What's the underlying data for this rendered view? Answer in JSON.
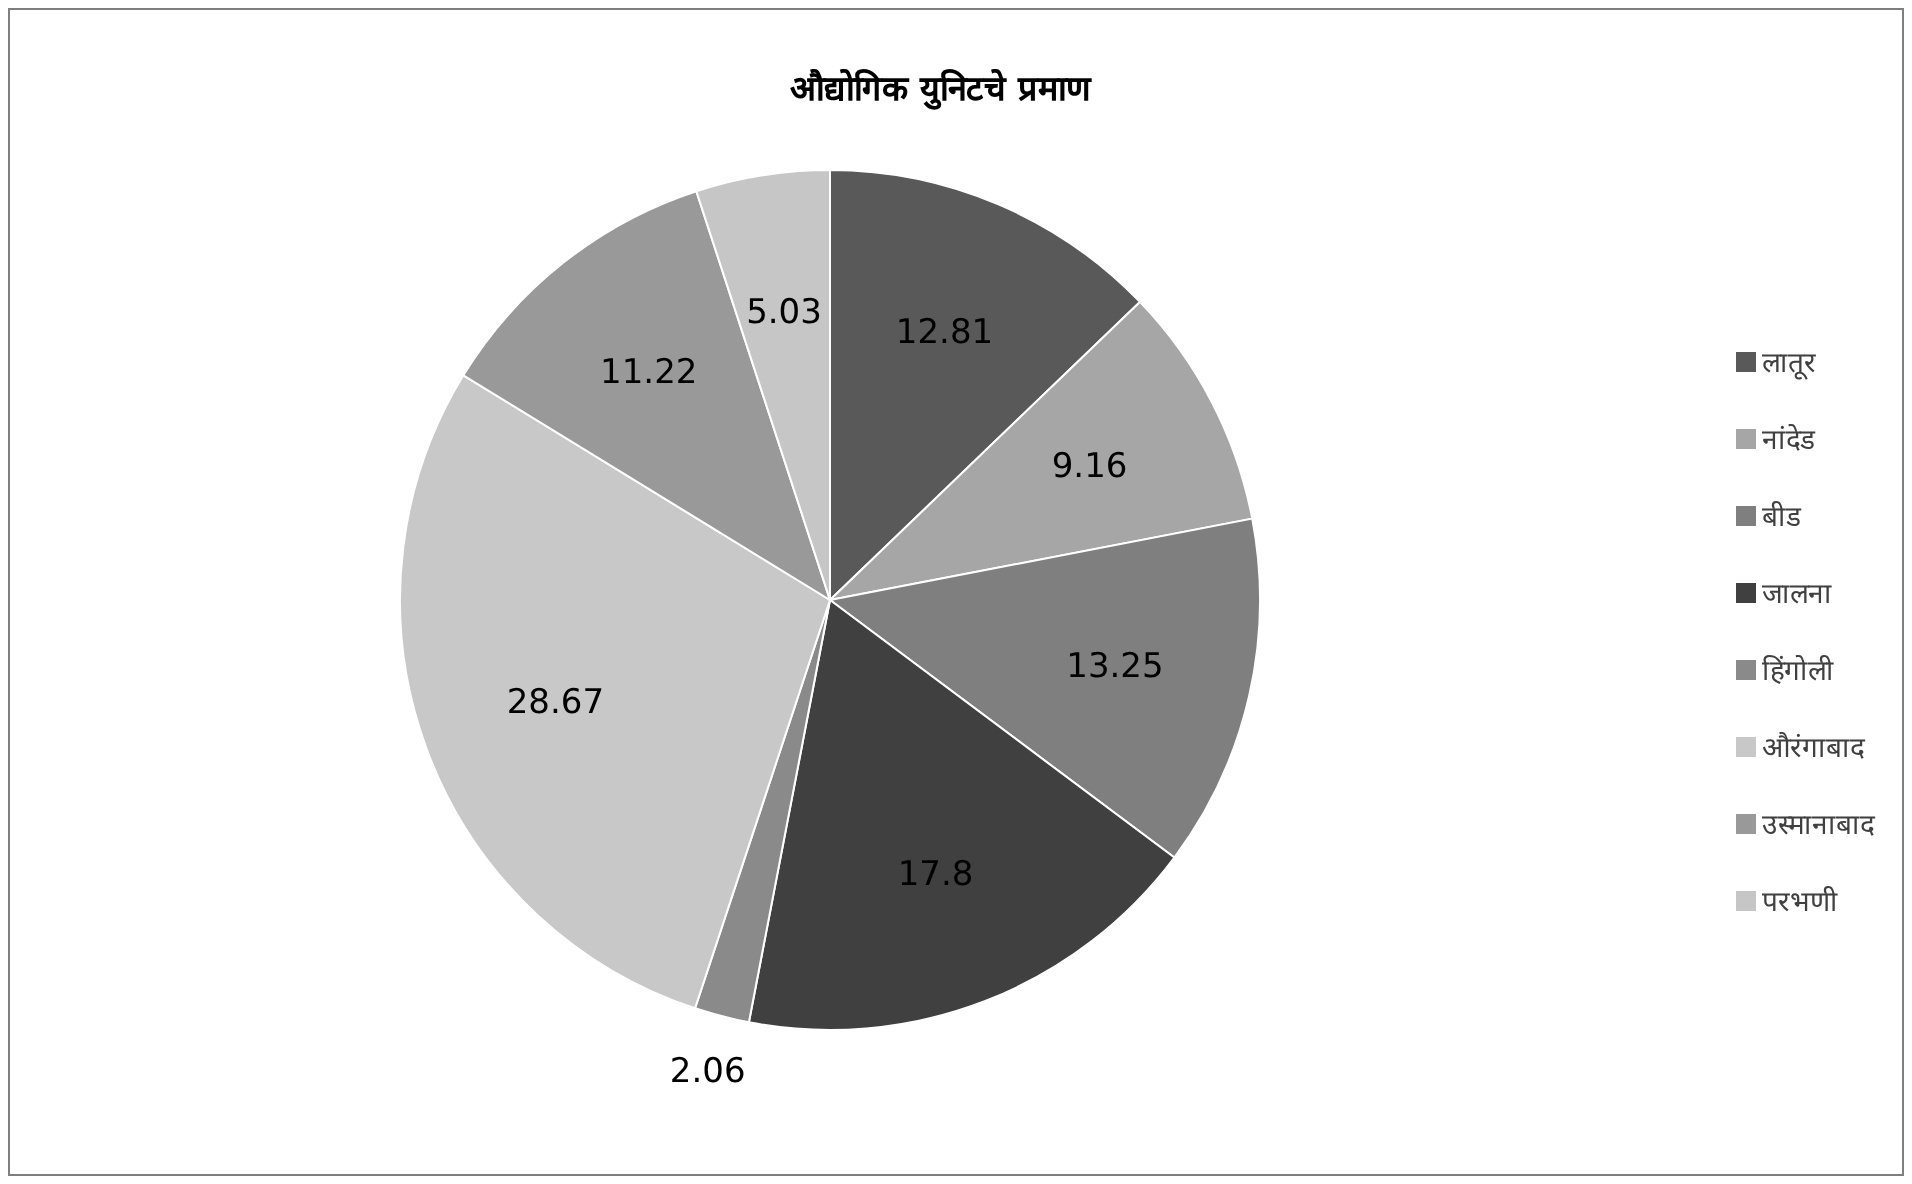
{
  "chart_data": {
    "type": "pie",
    "title": "औद्योगिक युनिटचे प्रमाण",
    "categories": [
      "लातूर",
      "नांदेड",
      "बीड",
      "जालना",
      "हिंगोली",
      "औरंगाबाद",
      "उस्मानाबाद",
      "परभणी"
    ],
    "values": [
      12.81,
      9.16,
      13.25,
      17.8,
      2.06,
      28.67,
      11.22,
      5.03
    ],
    "colors": [
      "#595959",
      "#a6a6a6",
      "#7f7f7f",
      "#404040",
      "#8a8a8a",
      "#c8c8c8",
      "#999999",
      "#c6c6c6"
    ],
    "data_labels": true,
    "legend": "right"
  }
}
